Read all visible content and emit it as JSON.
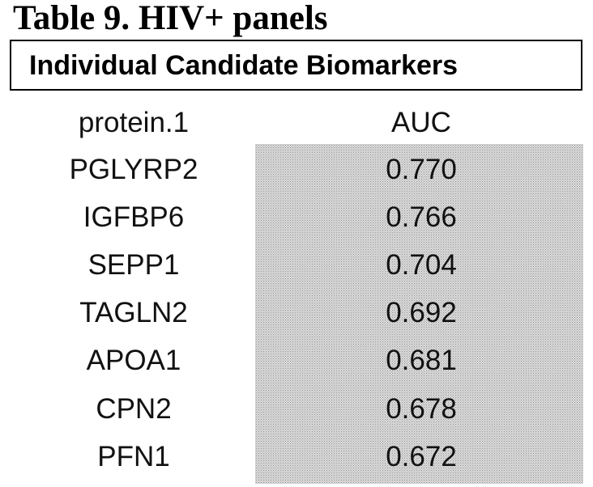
{
  "title": "Table 9. HIV+ panels",
  "box_label": "Individual Candidate Biomarkers",
  "headers": {
    "protein": "protein.1",
    "auc": "AUC"
  },
  "rows": [
    {
      "protein": "PGLYRP2",
      "auc": "0.770"
    },
    {
      "protein": "IGFBP6",
      "auc": "0.766"
    },
    {
      "protein": "SEPP1",
      "auc": "0.704"
    },
    {
      "protein": "TAGLN2",
      "auc": "0.692"
    },
    {
      "protein": "APOA1",
      "auc": "0.681"
    },
    {
      "protein": "CPN2",
      "auc": "0.678"
    },
    {
      "protein": "PFN1",
      "auc": "0.672"
    }
  ]
}
